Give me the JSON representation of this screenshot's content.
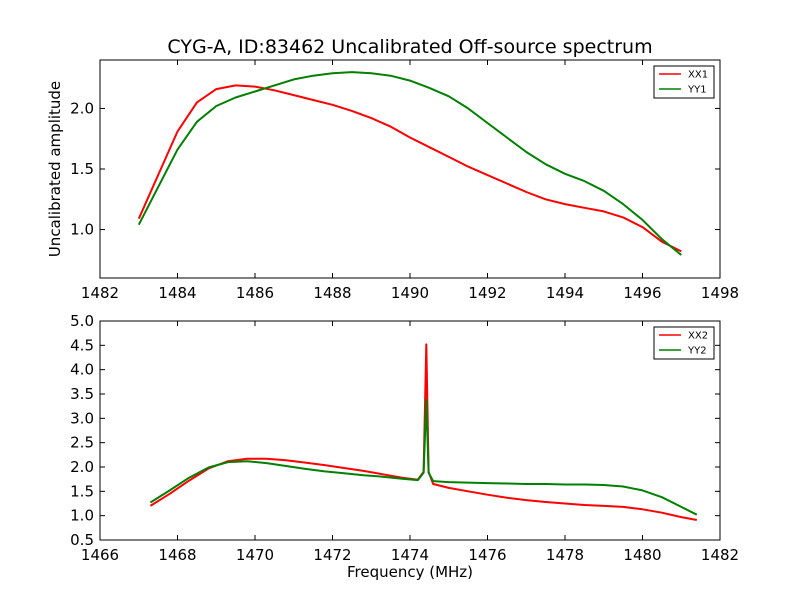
{
  "title": "CYG-A, ID:83462 Uncalibrated Off-source spectrum",
  "colors": {
    "xx": "#ff0000",
    "yy": "#008000"
  },
  "chart_data": [
    {
      "type": "line",
      "xlabel": "",
      "ylabel": "Uncalibrated amplitude",
      "xlim": [
        1482,
        1498
      ],
      "ylim": [
        0.6,
        2.4
      ],
      "xticks": [
        "1482",
        "1484",
        "1486",
        "1488",
        "1490",
        "1492",
        "1494",
        "1496",
        "1498"
      ],
      "yticks": [
        "1.0",
        "1.5",
        "2.0"
      ],
      "legend_position": "top-right",
      "series": [
        {
          "name": "XX1",
          "color": "#ff0000",
          "x": [
            1483.0,
            1483.5,
            1484.0,
            1484.5,
            1485.0,
            1485.5,
            1486.0,
            1486.5,
            1487.0,
            1487.5,
            1488.0,
            1488.5,
            1489.0,
            1489.5,
            1490.0,
            1490.5,
            1491.0,
            1491.5,
            1492.0,
            1492.5,
            1493.0,
            1493.5,
            1494.0,
            1494.5,
            1495.0,
            1495.5,
            1496.0,
            1496.5,
            1497.0
          ],
          "y": [
            1.09,
            1.45,
            1.81,
            2.05,
            2.16,
            2.19,
            2.18,
            2.15,
            2.11,
            2.07,
            2.03,
            1.98,
            1.92,
            1.85,
            1.76,
            1.68,
            1.6,
            1.52,
            1.45,
            1.38,
            1.31,
            1.25,
            1.21,
            1.18,
            1.15,
            1.1,
            1.02,
            0.9,
            0.82
          ]
        },
        {
          "name": "YY1",
          "color": "#008000",
          "x": [
            1483.0,
            1483.5,
            1484.0,
            1484.5,
            1485.0,
            1485.5,
            1486.0,
            1486.5,
            1487.0,
            1487.5,
            1488.0,
            1488.5,
            1489.0,
            1489.5,
            1490.0,
            1490.5,
            1491.0,
            1491.5,
            1492.0,
            1492.5,
            1493.0,
            1493.5,
            1494.0,
            1494.5,
            1495.0,
            1495.5,
            1496.0,
            1496.5,
            1497.0
          ],
          "y": [
            1.04,
            1.35,
            1.66,
            1.89,
            2.02,
            2.09,
            2.14,
            2.19,
            2.24,
            2.27,
            2.29,
            2.3,
            2.29,
            2.27,
            2.23,
            2.17,
            2.1,
            2.0,
            1.88,
            1.76,
            1.64,
            1.54,
            1.46,
            1.4,
            1.32,
            1.21,
            1.08,
            0.92,
            0.79
          ]
        }
      ]
    },
    {
      "type": "line",
      "xlabel": "Frequency (MHz)",
      "ylabel": "",
      "xlim": [
        1466,
        1482
      ],
      "ylim": [
        0.5,
        5.0
      ],
      "xticks": [
        "1466",
        "1468",
        "1470",
        "1472",
        "1474",
        "1476",
        "1478",
        "1480",
        "1482"
      ],
      "yticks": [
        "0.5",
        "1.0",
        "1.5",
        "2.0",
        "2.5",
        "3.0",
        "3.5",
        "4.0",
        "4.5",
        "5.0"
      ],
      "legend_position": "top-right",
      "series": [
        {
          "name": "XX2",
          "color": "#ff0000",
          "x": [
            1467.3,
            1467.8,
            1468.3,
            1468.8,
            1469.3,
            1469.8,
            1470.3,
            1470.8,
            1471.3,
            1471.8,
            1472.3,
            1472.8,
            1473.3,
            1473.8,
            1474.2,
            1474.35,
            1474.42,
            1474.48,
            1474.6,
            1475.0,
            1475.5,
            1476.0,
            1476.5,
            1477.0,
            1477.5,
            1478.0,
            1478.5,
            1479.0,
            1479.5,
            1480.0,
            1480.5,
            1481.0,
            1481.4
          ],
          "y": [
            1.2,
            1.45,
            1.72,
            1.97,
            2.12,
            2.17,
            2.17,
            2.14,
            2.09,
            2.04,
            1.98,
            1.92,
            1.85,
            1.78,
            1.74,
            1.9,
            4.52,
            1.9,
            1.65,
            1.57,
            1.5,
            1.43,
            1.37,
            1.32,
            1.28,
            1.25,
            1.22,
            1.2,
            1.18,
            1.13,
            1.06,
            0.97,
            0.91
          ]
        },
        {
          "name": "YY2",
          "color": "#008000",
          "x": [
            1467.3,
            1467.8,
            1468.3,
            1468.8,
            1469.3,
            1469.8,
            1470.3,
            1470.8,
            1471.3,
            1471.8,
            1472.3,
            1472.8,
            1473.3,
            1473.8,
            1474.2,
            1474.35,
            1474.42,
            1474.48,
            1474.6,
            1475.0,
            1475.5,
            1476.0,
            1476.5,
            1477.0,
            1477.5,
            1478.0,
            1478.5,
            1479.0,
            1479.5,
            1480.0,
            1480.5,
            1481.0,
            1481.4
          ],
          "y": [
            1.27,
            1.52,
            1.78,
            1.99,
            2.1,
            2.12,
            2.08,
            2.02,
            1.96,
            1.91,
            1.87,
            1.83,
            1.8,
            1.76,
            1.73,
            1.88,
            3.38,
            1.88,
            1.71,
            1.69,
            1.68,
            1.67,
            1.66,
            1.65,
            1.65,
            1.64,
            1.64,
            1.63,
            1.6,
            1.52,
            1.38,
            1.18,
            1.02
          ]
        }
      ]
    }
  ]
}
